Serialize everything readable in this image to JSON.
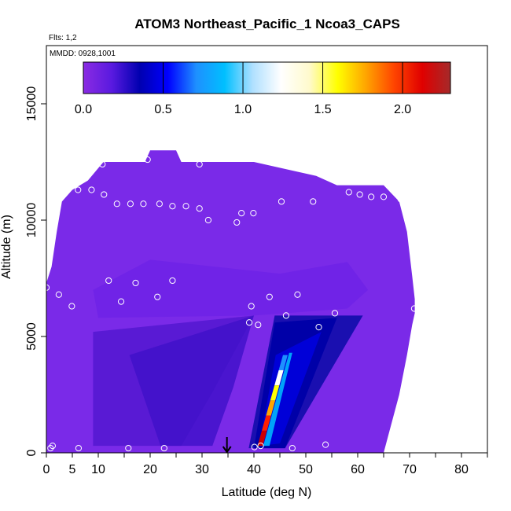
{
  "chart_data": {
    "type": "heatmap",
    "title": "ATOM3 Northeast_Pacific_1 Ncoa3_CAPS",
    "flights_label": "Flts: 1,2",
    "dates_label": "MMDD: 0928,1001",
    "xlabel": "Latitude (deg N)",
    "ylabel": "Altitude (m)",
    "xlim": [
      0,
      85
    ],
    "ylim": [
      0,
      17500
    ],
    "x_ticks": [
      0,
      5,
      10,
      20,
      30,
      40,
      50,
      60,
      70,
      80
    ],
    "x_tick_labels": [
      "0",
      "5",
      "10",
      "20",
      "30",
      "40",
      "50",
      "60",
      "70",
      "80"
    ],
    "y_ticks": [
      0,
      5000,
      10000,
      15000
    ],
    "y_tick_labels": [
      "0",
      "5000",
      "10000",
      "15000"
    ],
    "colorbar": {
      "range": [
        0,
        2.3
      ],
      "ticks": [
        0,
        0.5,
        1.0,
        1.5,
        2.0
      ],
      "tick_labels": [
        "0.0",
        "0.5",
        "1.0",
        "1.5",
        "2.0"
      ],
      "colors": [
        "#8a2be2",
        "#5a1ae0",
        "#0000b0",
        "#0000ff",
        "#1e90ff",
        "#00bfff",
        "#b0e0ff",
        "#ffffff",
        "#fffacd",
        "#ffff00",
        "#ffa500",
        "#ff4500",
        "#e00000",
        "#a52a2a"
      ]
    },
    "marker": {
      "type": "arrow",
      "x": 34.8
    },
    "grid": false,
    "envelope": [
      {
        "lat": 0,
        "bottom": 0,
        "top": 7300
      },
      {
        "lat": 1,
        "bottom": 0,
        "top": 8000
      },
      {
        "lat": 2,
        "bottom": 0,
        "top": 9500
      },
      {
        "lat": 3,
        "bottom": 0,
        "top": 10800
      },
      {
        "lat": 5,
        "bottom": 0,
        "top": 11300
      },
      {
        "lat": 8,
        "bottom": 0,
        "top": 11700
      },
      {
        "lat": 11,
        "bottom": 0,
        "top": 12500
      },
      {
        "lat": 19,
        "bottom": 0,
        "top": 12500
      },
      {
        "lat": 20,
        "bottom": 0,
        "top": 13000
      },
      {
        "lat": 25,
        "bottom": 0,
        "top": 13000
      },
      {
        "lat": 26,
        "bottom": 0,
        "top": 12500
      },
      {
        "lat": 40,
        "bottom": 0,
        "top": 12500
      },
      {
        "lat": 52,
        "bottom": 0,
        "top": 11900
      },
      {
        "lat": 56,
        "bottom": 0,
        "top": 11500
      },
      {
        "lat": 65,
        "bottom": 0,
        "top": 11500
      },
      {
        "lat": 68,
        "bottom": 2500,
        "top": 10800
      },
      {
        "lat": 69.5,
        "bottom": 4200,
        "top": 9500
      },
      {
        "lat": 70.5,
        "bottom": 5500,
        "top": 7600
      },
      {
        "lat": 71,
        "bottom": 6000,
        "top": 6600
      }
    ],
    "plume": {
      "outer": [
        [
          39,
          200
        ],
        [
          44,
          5900
        ],
        [
          61,
          5900
        ],
        [
          46,
          200
        ]
      ],
      "inner": [
        [
          41,
          300
        ],
        [
          44.2,
          4200
        ],
        [
          53,
          5200
        ],
        [
          45,
          400
        ]
      ],
      "core": [
        [
          40.7,
          300
        ],
        [
          41.7,
          100
        ],
        [
          46.5,
          4100
        ],
        [
          45.6,
          4200
        ]
      ]
    },
    "points": [
      [
        0,
        7100
      ],
      [
        0.8,
        200
      ],
      [
        1.2,
        300
      ],
      [
        2.4,
        6800
      ],
      [
        3.9,
        11900
      ],
      [
        4,
        11300
      ],
      [
        4.9,
        6300
      ],
      [
        6.2,
        200
      ],
      [
        6.1,
        11300
      ],
      [
        8.7,
        11300
      ],
      [
        10.8,
        12400
      ],
      [
        11.1,
        11100
      ],
      [
        12,
        7400
      ],
      [
        13.6,
        10700
      ],
      [
        14.4,
        6500
      ],
      [
        15.8,
        200
      ],
      [
        16.2,
        10700
      ],
      [
        17.2,
        7300
      ],
      [
        18.7,
        10700
      ],
      [
        19.5,
        12600
      ],
      [
        21.4,
        6700
      ],
      [
        21.8,
        10700
      ],
      [
        22.7,
        200
      ],
      [
        24.3,
        10600
      ],
      [
        24.3,
        7400
      ],
      [
        26.6,
        12800
      ],
      [
        26.9,
        10600
      ],
      [
        29.5,
        10500
      ],
      [
        29.5,
        12400
      ],
      [
        31.2,
        10000
      ],
      [
        36.7,
        9900
      ],
      [
        37.6,
        10300
      ],
      [
        39.1,
        5600
      ],
      [
        39.5,
        6300
      ],
      [
        39.9,
        10300
      ],
      [
        40.1,
        250
      ],
      [
        40.8,
        5500
      ],
      [
        41.3,
        300
      ],
      [
        43.0,
        6700
      ],
      [
        45.3,
        10800
      ],
      [
        46.2,
        5900
      ],
      [
        47.4,
        200
      ],
      [
        48.4,
        6800
      ],
      [
        51.4,
        10800
      ],
      [
        52.5,
        5400
      ],
      [
        53.8,
        350
      ],
      [
        55.6,
        6000
      ],
      [
        58.3,
        11200
      ],
      [
        60.4,
        11100
      ],
      [
        62.6,
        11000
      ],
      [
        65,
        11000
      ],
      [
        68.3,
        10900
      ],
      [
        70.9,
        6200
      ]
    ]
  }
}
